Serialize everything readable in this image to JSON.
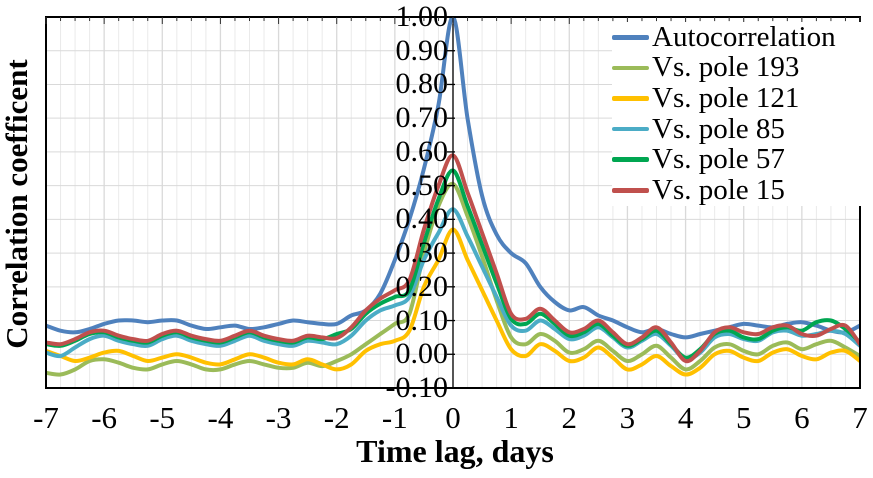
{
  "chart_data": {
    "type": "line",
    "title": "",
    "xlabel": "Time lag, days",
    "ylabel": "Correlation coefficent",
    "xlim": [
      -7,
      7
    ],
    "ylim": [
      -0.1,
      1.0
    ],
    "x_step": 0.25,
    "x_start": -7,
    "x_ticks": [
      -7,
      -6,
      -5,
      -4,
      -3,
      -2,
      -1,
      0,
      1,
      2,
      3,
      4,
      5,
      6,
      7
    ],
    "x_tick_labels": [
      "-7",
      "-6",
      "-5",
      "-4",
      "-3",
      "-2",
      "-1",
      "0",
      "1",
      "2",
      "3",
      "4",
      "5",
      "6",
      "7"
    ],
    "y_ticks": [
      1.0,
      0.9,
      0.8,
      0.7,
      0.6,
      0.5,
      0.4,
      0.3,
      0.2,
      0.1,
      0.0,
      -0.1
    ],
    "y_tick_labels": [
      "1.00",
      "0.90",
      "0.80",
      "0.70",
      "0.60",
      "0.50",
      "0.40",
      "0.30",
      "0.20",
      "0.10",
      "0.00",
      "-0.10"
    ],
    "grid": {
      "on": true,
      "x_minor_step": 0.25,
      "x_major_step": 1,
      "y_step": 0.1
    },
    "legend_position": "top-right-inside",
    "axis_style": {
      "x_axis_position": "top",
      "y_axis_position": "center-x0",
      "background": "#FFFFFF",
      "axis_color": "#000000",
      "grid_major_color": "#D9D9D9",
      "grid_minor_color": "#EAEAEA"
    },
    "series": [
      {
        "name": "Autocorrelation",
        "color": "#4F81BD",
        "values": [
          0.085,
          0.07,
          0.065,
          0.075,
          0.09,
          0.1,
          0.1,
          0.095,
          0.1,
          0.1,
          0.085,
          0.075,
          0.08,
          0.085,
          0.075,
          0.08,
          0.09,
          0.1,
          0.095,
          0.09,
          0.09,
          0.115,
          0.13,
          0.18,
          0.28,
          0.4,
          0.55,
          0.74,
          1.0,
          0.7,
          0.47,
          0.355,
          0.3,
          0.27,
          0.2,
          0.155,
          0.13,
          0.14,
          0.115,
          0.1,
          0.08,
          0.065,
          0.075,
          0.06,
          0.05,
          0.06,
          0.07,
          0.08,
          0.09,
          0.085,
          0.08,
          0.09,
          0.095,
          0.085,
          0.07,
          0.065,
          0.085
        ]
      },
      {
        "name": "Vs. pole 193",
        "color": "#9BBB59",
        "values": [
          -0.055,
          -0.06,
          -0.045,
          -0.02,
          -0.015,
          -0.025,
          -0.04,
          -0.045,
          -0.03,
          -0.02,
          -0.03,
          -0.045,
          -0.045,
          -0.03,
          -0.02,
          -0.03,
          -0.04,
          -0.04,
          -0.025,
          -0.035,
          -0.02,
          0.0,
          0.03,
          0.06,
          0.09,
          0.12,
          0.3,
          0.44,
          0.505,
          0.41,
          0.29,
          0.16,
          0.05,
          0.03,
          0.06,
          0.04,
          0.005,
          0.015,
          0.04,
          0.01,
          -0.02,
          0.0,
          0.025,
          -0.01,
          -0.045,
          -0.02,
          0.02,
          0.03,
          0.01,
          0.0,
          0.025,
          0.035,
          0.015,
          0.03,
          0.04,
          0.02,
          -0.005
        ]
      },
      {
        "name": "Vs. pole 121",
        "color": "#FFC000",
        "values": [
          0.01,
          -0.005,
          -0.02,
          -0.01,
          0.005,
          0.01,
          -0.005,
          -0.02,
          -0.01,
          0.0,
          -0.01,
          -0.025,
          -0.03,
          -0.015,
          0.0,
          -0.01,
          -0.025,
          -0.03,
          -0.015,
          -0.03,
          -0.045,
          -0.03,
          0.01,
          0.03,
          0.04,
          0.07,
          0.2,
          0.28,
          0.37,
          0.28,
          0.19,
          0.1,
          0.015,
          -0.005,
          0.03,
          0.01,
          -0.02,
          -0.01,
          0.02,
          -0.01,
          -0.045,
          -0.03,
          -0.005,
          -0.035,
          -0.06,
          -0.04,
          0.0,
          0.01,
          -0.01,
          -0.02,
          0.005,
          0.015,
          -0.005,
          -0.015,
          0.005,
          0.01,
          -0.02
        ]
      },
      {
        "name": "Vs. pole 85",
        "color": "#4BACC6",
        "values": [
          0.005,
          -0.005,
          0.02,
          0.045,
          0.055,
          0.04,
          0.03,
          0.025,
          0.045,
          0.055,
          0.04,
          0.03,
          0.025,
          0.04,
          0.055,
          0.04,
          0.03,
          0.025,
          0.04,
          0.035,
          0.03,
          0.055,
          0.1,
          0.13,
          0.145,
          0.17,
          0.28,
          0.36,
          0.43,
          0.35,
          0.26,
          0.17,
          0.085,
          0.07,
          0.1,
          0.075,
          0.045,
          0.055,
          0.08,
          0.05,
          0.02,
          0.04,
          0.06,
          0.025,
          -0.015,
          0.005,
          0.05,
          0.06,
          0.045,
          0.04,
          0.065,
          0.07,
          0.055,
          0.06,
          0.07,
          0.06,
          0.025
        ]
      },
      {
        "name": "Vs. pole 57",
        "color": "#00A651",
        "values": [
          0.03,
          0.025,
          0.04,
          0.06,
          0.065,
          0.05,
          0.04,
          0.035,
          0.055,
          0.065,
          0.05,
          0.04,
          0.035,
          0.05,
          0.065,
          0.05,
          0.04,
          0.035,
          0.05,
          0.045,
          0.06,
          0.075,
          0.12,
          0.15,
          0.17,
          0.19,
          0.33,
          0.46,
          0.545,
          0.44,
          0.325,
          0.21,
          0.105,
          0.09,
          0.12,
          0.09,
          0.055,
          0.065,
          0.09,
          0.055,
          0.025,
          0.045,
          0.07,
          0.03,
          -0.01,
          0.015,
          0.06,
          0.07,
          0.05,
          0.045,
          0.07,
          0.08,
          0.07,
          0.095,
          0.1,
          0.075,
          0.035
        ]
      },
      {
        "name": "Vs. pole 15",
        "color": "#C0504D",
        "values": [
          0.035,
          0.03,
          0.045,
          0.065,
          0.07,
          0.055,
          0.045,
          0.04,
          0.06,
          0.07,
          0.055,
          0.045,
          0.04,
          0.055,
          0.07,
          0.055,
          0.045,
          0.04,
          0.055,
          0.05,
          0.048,
          0.08,
          0.13,
          0.165,
          0.19,
          0.22,
          0.37,
          0.5,
          0.59,
          0.48,
          0.36,
          0.24,
          0.12,
          0.105,
          0.135,
          0.1,
          0.065,
          0.075,
          0.1,
          0.065,
          0.03,
          0.05,
          0.08,
          0.035,
          -0.02,
          0.01,
          0.065,
          0.08,
          0.065,
          0.06,
          0.08,
          0.085,
          0.06,
          0.055,
          0.075,
          0.085,
          0.03
        ]
      }
    ],
    "peak_values_at_lag0": {
      "Autocorrelation": 1.0,
      "Vs. pole 15": 0.59,
      "Vs. pole 57": 0.545,
      "Vs. pole 193": 0.505,
      "Vs. pole 85": 0.43,
      "Vs. pole 121": 0.37
    }
  }
}
